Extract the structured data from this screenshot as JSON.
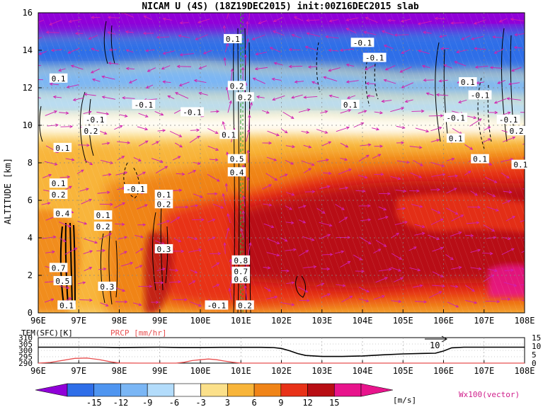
{
  "title": "NICAM U (4S) (18Z19DEC2015) init:00Z16DEC2015 slab",
  "chart_data": [
    {
      "type": "heatmap",
      "subtype": "longitude-altitude cross section with contours and wind vectors",
      "xlabel": "",
      "ylabel": "ALTITUDE [km]",
      "x_ticks": [
        "96E",
        "97E",
        "98E",
        "99E",
        "100E",
        "101E",
        "102E",
        "103E",
        "104E",
        "105E",
        "106E",
        "107E",
        "108E"
      ],
      "x_range": [
        96,
        108
      ],
      "y_ticks": [
        "0",
        "2",
        "4",
        "6",
        "8",
        "10",
        "12",
        "14",
        "16"
      ],
      "y_range": [
        0,
        16
      ],
      "grid": true,
      "colorbar": {
        "levels": [
          "-15",
          "-12",
          "-9",
          "-6",
          "-3",
          "3",
          "6",
          "9",
          "12",
          "15"
        ],
        "unit": "[m/s]",
        "colors": [
          "#9000d8",
          "#2f6ee8",
          "#4f95f0",
          "#7ab6f5",
          "#b3dcfb",
          "#ffffff",
          "#fbe08a",
          "#f8b53a",
          "#f08418",
          "#e83218",
          "#b80e14",
          "#e8148c"
        ]
      },
      "vector_label": "Wx100(vector)",
      "contour_labels": [
        {
          "text": "0.1",
          "x": 100.8,
          "y": 14.6
        },
        {
          "text": "-0.1",
          "x": 104.0,
          "y": 14.4
        },
        {
          "text": "-0.1",
          "x": 104.3,
          "y": 13.6
        },
        {
          "text": "0.1",
          "x": 96.5,
          "y": 12.5
        },
        {
          "text": "0.1",
          "x": 106.6,
          "y": 12.3
        },
        {
          "text": "0.2",
          "x": 100.9,
          "y": 12.1
        },
        {
          "text": "0.2",
          "x": 101.1,
          "y": 11.5
        },
        {
          "text": "-0.1",
          "x": 106.9,
          "y": 11.6
        },
        {
          "text": "-0.1",
          "x": 98.6,
          "y": 11.1
        },
        {
          "text": "-0.1",
          "x": 99.8,
          "y": 10.7
        },
        {
          "text": "0.1",
          "x": 103.7,
          "y": 11.1
        },
        {
          "text": "-0.1",
          "x": 97.4,
          "y": 10.3
        },
        {
          "text": "-0.1",
          "x": 106.3,
          "y": 10.4
        },
        {
          "text": "-0.1",
          "x": 107.6,
          "y": 10.3
        },
        {
          "text": "0.2",
          "x": 97.3,
          "y": 9.7
        },
        {
          "text": "0.1",
          "x": 100.7,
          "y": 9.5
        },
        {
          "text": "0.1",
          "x": 106.3,
          "y": 9.3
        },
        {
          "text": "0.2",
          "x": 107.8,
          "y": 9.7
        },
        {
          "text": "0.1",
          "x": 96.6,
          "y": 8.8
        },
        {
          "text": "0.1",
          "x": 106.9,
          "y": 8.2
        },
        {
          "text": "0.1",
          "x": 107.9,
          "y": 7.9
        },
        {
          "text": "0.5",
          "x": 100.9,
          "y": 8.2
        },
        {
          "text": "0.4",
          "x": 100.9,
          "y": 7.5
        },
        {
          "text": "0.1",
          "x": 96.5,
          "y": 6.9
        },
        {
          "text": "0.2",
          "x": 96.5,
          "y": 6.3
        },
        {
          "text": "-0.1",
          "x": 98.4,
          "y": 6.6
        },
        {
          "text": "0.1",
          "x": 99.1,
          "y": 6.3
        },
        {
          "text": "0.2",
          "x": 99.1,
          "y": 5.8
        },
        {
          "text": "0.4",
          "x": 96.6,
          "y": 5.3
        },
        {
          "text": "0.1",
          "x": 97.6,
          "y": 5.2
        },
        {
          "text": "0.2",
          "x": 97.6,
          "y": 4.6
        },
        {
          "text": "0.3",
          "x": 99.1,
          "y": 3.4
        },
        {
          "text": "0.8",
          "x": 101.0,
          "y": 2.8
        },
        {
          "text": "0.7",
          "x": 101.0,
          "y": 2.2
        },
        {
          "text": "0.6",
          "x": 101.0,
          "y": 1.8
        },
        {
          "text": "0.7",
          "x": 96.5,
          "y": 2.4
        },
        {
          "text": "0.5",
          "x": 96.6,
          "y": 1.7
        },
        {
          "text": "0.3",
          "x": 97.7,
          "y": 1.4
        },
        {
          "text": "0.1",
          "x": 96.7,
          "y": 0.4
        },
        {
          "text": "-0.1",
          "x": 100.4,
          "y": 0.4
        },
        {
          "text": "0.2",
          "x": 101.1,
          "y": 0.4
        }
      ]
    },
    {
      "type": "line",
      "x_ticks": [
        "96E",
        "97E",
        "98E",
        "99E",
        "100E",
        "101E",
        "102E",
        "103E",
        "104E",
        "105E",
        "106E",
        "107E",
        "108E"
      ],
      "x_range": [
        96,
        108
      ],
      "left_axis": {
        "label": "TEM(SFC)[K]",
        "ticks": [
          "290",
          "295",
          "300",
          "305",
          "310"
        ],
        "range": [
          290,
          310
        ]
      },
      "right_axis": {
        "label": "PRCP [mm/hr]",
        "ticks": [
          "0",
          "5",
          "10",
          "15"
        ],
        "range": [
          0,
          15
        ]
      },
      "annotation": "10",
      "series": [
        {
          "name": "TEM(SFC)[K]",
          "axis": "left",
          "color": "#000000",
          "x": [
            96,
            96.5,
            97,
            97.5,
            98,
            98.5,
            99,
            99.5,
            100,
            100.5,
            101,
            101.5,
            101.8,
            102.0,
            102.2,
            102.4,
            102.6,
            103,
            103.5,
            104,
            104.5,
            105,
            105.5,
            105.8,
            106.0,
            106.2,
            106.5,
            107,
            107.5,
            108
          ],
          "y": [
            302.5,
            302.5,
            302.5,
            302.5,
            302.3,
            302.4,
            302.5,
            302.3,
            302.3,
            302.4,
            302.4,
            302.4,
            302.2,
            301.5,
            299.7,
            297.5,
            296.0,
            295.2,
            295.2,
            295.6,
            296.5,
            297.2,
            297.6,
            297.8,
            299.5,
            302.0,
            302.5,
            302.5,
            302.5,
            302.5
          ]
        },
        {
          "name": "PRCP [mm/hr]",
          "axis": "right",
          "color": "#e85050",
          "x": [
            96,
            96.3,
            96.6,
            96.9,
            97.2,
            97.5,
            97.8,
            98,
            98.5,
            99,
            99.4,
            99.6,
            99.8,
            100,
            100.2,
            100.4,
            100.6,
            100.8,
            101,
            102,
            103,
            104,
            105,
            106,
            107,
            108
          ],
          "y": [
            0,
            0.4,
            1.6,
            2.8,
            3.0,
            2.1,
            0.7,
            0.1,
            0,
            0,
            0,
            0.5,
            1.5,
            2.0,
            2.4,
            2.0,
            1.2,
            0.5,
            0,
            0,
            0,
            0,
            0,
            0,
            0,
            0
          ]
        }
      ]
    }
  ]
}
